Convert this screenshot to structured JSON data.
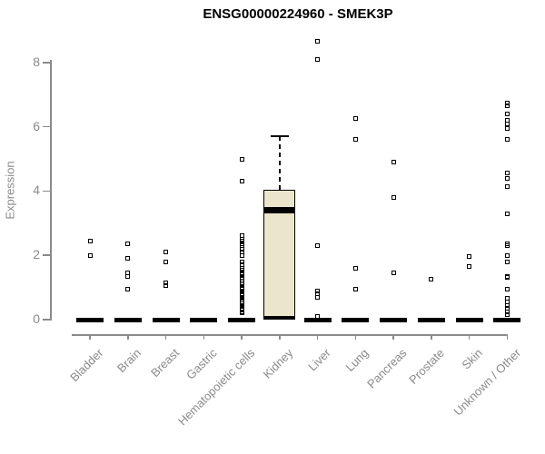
{
  "chart_data": {
    "type": "boxplot",
    "title": "ENSG00000224960 - SMEK3P",
    "ylabel": "Expression",
    "xlabel": "",
    "yticks": [
      0,
      2,
      4,
      6,
      8
    ],
    "ylim": [
      0,
      8.8
    ],
    "grid": false,
    "legend": "none",
    "colors": {
      "axis": "#8a8a8a",
      "points": "#000000",
      "box_fill": "#ebe6cb",
      "box_border": "#000000",
      "title": "#000000"
    },
    "categories": [
      "Bladder",
      "Brain",
      "Breast",
      "Gastric",
      "Hematopoietic cells",
      "Kidney",
      "Liver",
      "Lung",
      "Pancreas",
      "Prostate",
      "Skin",
      "Unknown / Other"
    ],
    "series": [
      {
        "category": "Bladder",
        "zero_bar": true,
        "points": [
          2.45,
          2.0
        ]
      },
      {
        "category": "Brain",
        "zero_bar": true,
        "points": [
          2.35,
          1.9,
          1.45,
          1.35,
          0.95
        ]
      },
      {
        "category": "Breast",
        "zero_bar": true,
        "points": [
          2.1,
          1.8,
          1.15,
          1.05
        ]
      },
      {
        "category": "Gastric",
        "zero_bar": true,
        "points": []
      },
      {
        "category": "Hematopoietic cells",
        "zero_bar": true,
        "points": [
          5.0,
          4.3,
          2.6,
          2.5,
          2.45,
          2.35,
          2.3,
          2.2,
          2.1,
          2.0,
          1.8,
          1.7,
          1.6,
          1.55,
          1.45,
          1.4,
          1.3,
          1.25,
          1.15,
          1.1,
          1.0,
          0.95,
          0.9,
          0.85,
          0.8,
          0.75,
          0.7,
          0.65,
          0.6,
          0.55,
          0.5,
          0.45,
          0.4,
          0.35,
          0.3,
          0.25,
          0.2
        ]
      },
      {
        "category": "Kidney",
        "zero_bar": false,
        "points": []
      },
      {
        "category": "Liver",
        "zero_bar": true,
        "points": [
          8.65,
          8.1,
          2.3,
          0.9,
          0.8,
          0.7,
          0.1
        ]
      },
      {
        "category": "Lung",
        "zero_bar": true,
        "points": [
          6.25,
          5.6,
          1.6,
          0.95
        ]
      },
      {
        "category": "Pancreas",
        "zero_bar": true,
        "points": [
          4.9,
          3.8,
          1.45
        ]
      },
      {
        "category": "Prostate",
        "zero_bar": true,
        "points": [
          1.25
        ]
      },
      {
        "category": "Skin",
        "zero_bar": true,
        "points": [
          1.95,
          1.65
        ]
      },
      {
        "category": "Unknown / Other",
        "zero_bar": true,
        "points": [
          6.75,
          6.65,
          6.4,
          6.2,
          6.1,
          5.95,
          5.6,
          4.55,
          4.4,
          4.15,
          3.3,
          2.35,
          2.3,
          2.0,
          1.8,
          1.35,
          1.3,
          0.95,
          0.65,
          0.55,
          0.45,
          0.35,
          0.25,
          0.15
        ]
      }
    ],
    "boxes": [
      {
        "category": "Kidney",
        "q1": 0,
        "median": 3.4,
        "q3": 4.05,
        "whisker_low": 0,
        "whisker_high": 5.7
      }
    ]
  }
}
